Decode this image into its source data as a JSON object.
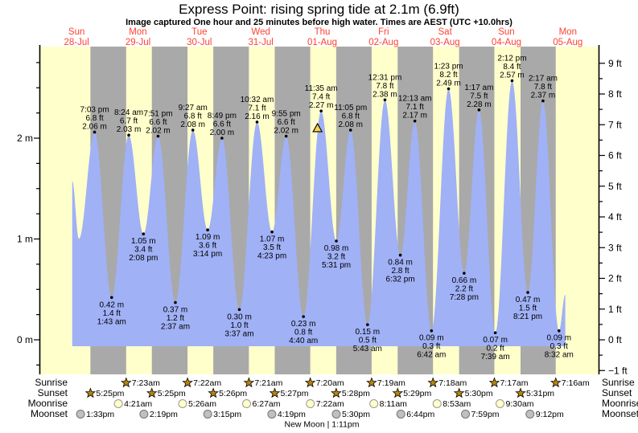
{
  "title": "Express Point: rising  spring tide at 2.1m (6.9ft)",
  "subtitle": "Image captured One hour and 25 minutes before high water. Times are AEST (UTC +10.0hrs)",
  "colors": {
    "day_band": "#ffffcc",
    "night_band": "#a9a9a9",
    "tide_fill": "#a0b1f6",
    "day_label_red": "#ff4033",
    "star_gold": "#b8860b",
    "triangle_yellow": "#ffd24d",
    "moonrise_fill": "#ffffcc",
    "moonrise_stroke": "#999999",
    "moonset_fill": "#c0c0c0",
    "moonset_stroke": "#747474",
    "axis_black": "#000000"
  },
  "chart_data": {
    "type": "area",
    "title": "Express Point: rising  spring tide at 2.1m (6.9ft)",
    "x_days": [
      {
        "weekday": "Sun",
        "date": "28-Jul"
      },
      {
        "weekday": "Mon",
        "date": "29-Jul"
      },
      {
        "weekday": "Tue",
        "date": "30-Jul"
      },
      {
        "weekday": "Wed",
        "date": "31-Jul"
      },
      {
        "weekday": "Thu",
        "date": "01-Aug"
      },
      {
        "weekday": "Fri",
        "date": "02-Aug"
      },
      {
        "weekday": "Sat",
        "date": "03-Aug"
      },
      {
        "weekday": "Sun",
        "date": "04-Aug"
      },
      {
        "weekday": "Mon",
        "date": "05-Aug"
      }
    ],
    "y_axis_left": {
      "unit": "m",
      "tick_labels": [
        "0 m",
        "1 m",
        "2 m"
      ],
      "tick_values": [
        0,
        1,
        2
      ],
      "minor_step": 0.25,
      "range_m": [
        -0.33,
        2.91
      ]
    },
    "y_axis_right": {
      "unit": "ft",
      "tick_values": [
        -1,
        0,
        1,
        2,
        3,
        4,
        5,
        6,
        7,
        8,
        9
      ],
      "minor_step": 0.5
    },
    "tide_events": [
      {
        "day": 0,
        "time": "7:03 pm",
        "ft": "6.8",
        "m": "2.06",
        "type": "high"
      },
      {
        "day": 1,
        "time": "1:43 am",
        "ft": "1.4",
        "m": "0.42",
        "type": "low"
      },
      {
        "day": 1,
        "time": "8:24 am",
        "ft": "6.7",
        "m": "2.03",
        "type": "high"
      },
      {
        "day": 1,
        "time": "2:08 pm",
        "ft": "3.4",
        "m": "1.05",
        "type": "low"
      },
      {
        "day": 1,
        "time": "7:51 pm",
        "ft": "6.6",
        "m": "2.02",
        "type": "high"
      },
      {
        "day": 2,
        "time": "2:37 am",
        "ft": "1.2",
        "m": "0.37",
        "type": "low"
      },
      {
        "day": 2,
        "time": "9:27 am",
        "ft": "6.8",
        "m": "2.08",
        "type": "high"
      },
      {
        "day": 2,
        "time": "3:14 pm",
        "ft": "3.6",
        "m": "1.09",
        "type": "low"
      },
      {
        "day": 2,
        "time": "8:49 pm",
        "ft": "6.6",
        "m": "2.00",
        "type": "high"
      },
      {
        "day": 3,
        "time": "3:37 am",
        "ft": "1.0",
        "m": "0.30",
        "type": "low"
      },
      {
        "day": 3,
        "time": "10:32 am",
        "ft": "7.1",
        "m": "2.16",
        "type": "high"
      },
      {
        "day": 3,
        "time": "4:23 pm",
        "ft": "3.5",
        "m": "1.07",
        "type": "low"
      },
      {
        "day": 3,
        "time": "9:55 pm",
        "ft": "6.6",
        "m": "2.02",
        "type": "high"
      },
      {
        "day": 4,
        "time": "4:40 am",
        "ft": "0.8",
        "m": "0.23",
        "type": "low"
      },
      {
        "day": 4,
        "time": "11:35 am",
        "ft": "7.4",
        "m": "2.27",
        "type": "high"
      },
      {
        "day": 4,
        "time": "5:31 pm",
        "ft": "3.2",
        "m": "0.98",
        "type": "low"
      },
      {
        "day": 4,
        "time": "11:05 pm",
        "ft": "6.8",
        "m": "2.08",
        "type": "high"
      },
      {
        "day": 5,
        "time": "5:43 am",
        "ft": "0.5",
        "m": "0.15",
        "type": "low"
      },
      {
        "day": 5,
        "time": "12:31 pm",
        "ft": "7.8",
        "m": "2.38",
        "type": "high"
      },
      {
        "day": 5,
        "time": "6:32 pm",
        "ft": "2.8",
        "m": "0.84",
        "type": "low"
      },
      {
        "day": 6,
        "time": "12:13 am",
        "ft": "7.1",
        "m": "2.17",
        "type": "high"
      },
      {
        "day": 6,
        "time": "6:42 am",
        "ft": "0.3",
        "m": "0.09",
        "type": "low"
      },
      {
        "day": 6,
        "time": "1:23 pm",
        "ft": "8.2",
        "m": "2.49",
        "type": "high"
      },
      {
        "day": 6,
        "time": "7:28 pm",
        "ft": "2.2",
        "m": "0.66",
        "type": "low"
      },
      {
        "day": 7,
        "time": "1:17 am",
        "ft": "7.5",
        "m": "2.28",
        "type": "high"
      },
      {
        "day": 7,
        "time": "7:39 am",
        "ft": "0.2",
        "m": "0.07",
        "type": "low"
      },
      {
        "day": 7,
        "time": "2:12 pm",
        "ft": "8.4",
        "m": "2.57",
        "type": "high"
      },
      {
        "day": 7,
        "time": "8:21 pm",
        "ft": "1.5",
        "m": "0.47",
        "type": "low"
      },
      {
        "day": 8,
        "time": "2:17 am",
        "ft": "7.8",
        "m": "2.37",
        "type": "high"
      },
      {
        "day": 8,
        "time": "8:32 am",
        "ft": "0.3",
        "m": "0.09",
        "type": "low"
      }
    ],
    "curve_anchors": [
      {
        "day": 0,
        "hour": 10.3,
        "m": 1.58
      },
      {
        "day": 0,
        "hour": 12.9,
        "m": 1.0
      },
      {
        "day": 8,
        "hour": 11.0,
        "m": 0.45
      }
    ],
    "capture_marker": {
      "day": 4,
      "time": "10:10 am",
      "m": 2.1
    }
  },
  "astro": {
    "row_labels": [
      "Sunrise",
      "Sunset",
      "Moonrise",
      "Moonset"
    ],
    "sunrise": [
      {
        "day": 1,
        "time": "7:23am"
      },
      {
        "day": 2,
        "time": "7:22am"
      },
      {
        "day": 3,
        "time": "7:21am"
      },
      {
        "day": 4,
        "time": "7:20am"
      },
      {
        "day": 5,
        "time": "7:19am"
      },
      {
        "day": 6,
        "time": "7:18am"
      },
      {
        "day": 7,
        "time": "7:17am"
      },
      {
        "day": 8,
        "time": "7:16am"
      }
    ],
    "sunset": [
      {
        "day": 0,
        "time": "5:25pm"
      },
      {
        "day": 1,
        "time": "5:25pm"
      },
      {
        "day": 2,
        "time": "5:26pm"
      },
      {
        "day": 3,
        "time": "5:27pm"
      },
      {
        "day": 4,
        "time": "5:28pm"
      },
      {
        "day": 5,
        "time": "5:29pm"
      },
      {
        "day": 6,
        "time": "5:30pm"
      },
      {
        "day": 7,
        "time": "5:31pm"
      }
    ],
    "moonrise": [
      {
        "day": 1,
        "time": "4:21am"
      },
      {
        "day": 2,
        "time": "5:26am"
      },
      {
        "day": 3,
        "time": "6:27am"
      },
      {
        "day": 4,
        "time": "7:22am"
      },
      {
        "day": 5,
        "time": "8:11am"
      },
      {
        "day": 6,
        "time": "8:53am"
      },
      {
        "day": 7,
        "time": "9:30am"
      }
    ],
    "moonset": [
      {
        "day": 0,
        "time": "1:33pm"
      },
      {
        "day": 1,
        "time": "2:19pm"
      },
      {
        "day": 2,
        "time": "3:15pm"
      },
      {
        "day": 3,
        "time": "4:19pm"
      },
      {
        "day": 4,
        "time": "5:30pm"
      },
      {
        "day": 5,
        "time": "6:44pm"
      },
      {
        "day": 6,
        "time": "7:59pm"
      },
      {
        "day": 7,
        "time": "9:12pm"
      }
    ],
    "new_moon": "New Moon | 1:11pm"
  }
}
